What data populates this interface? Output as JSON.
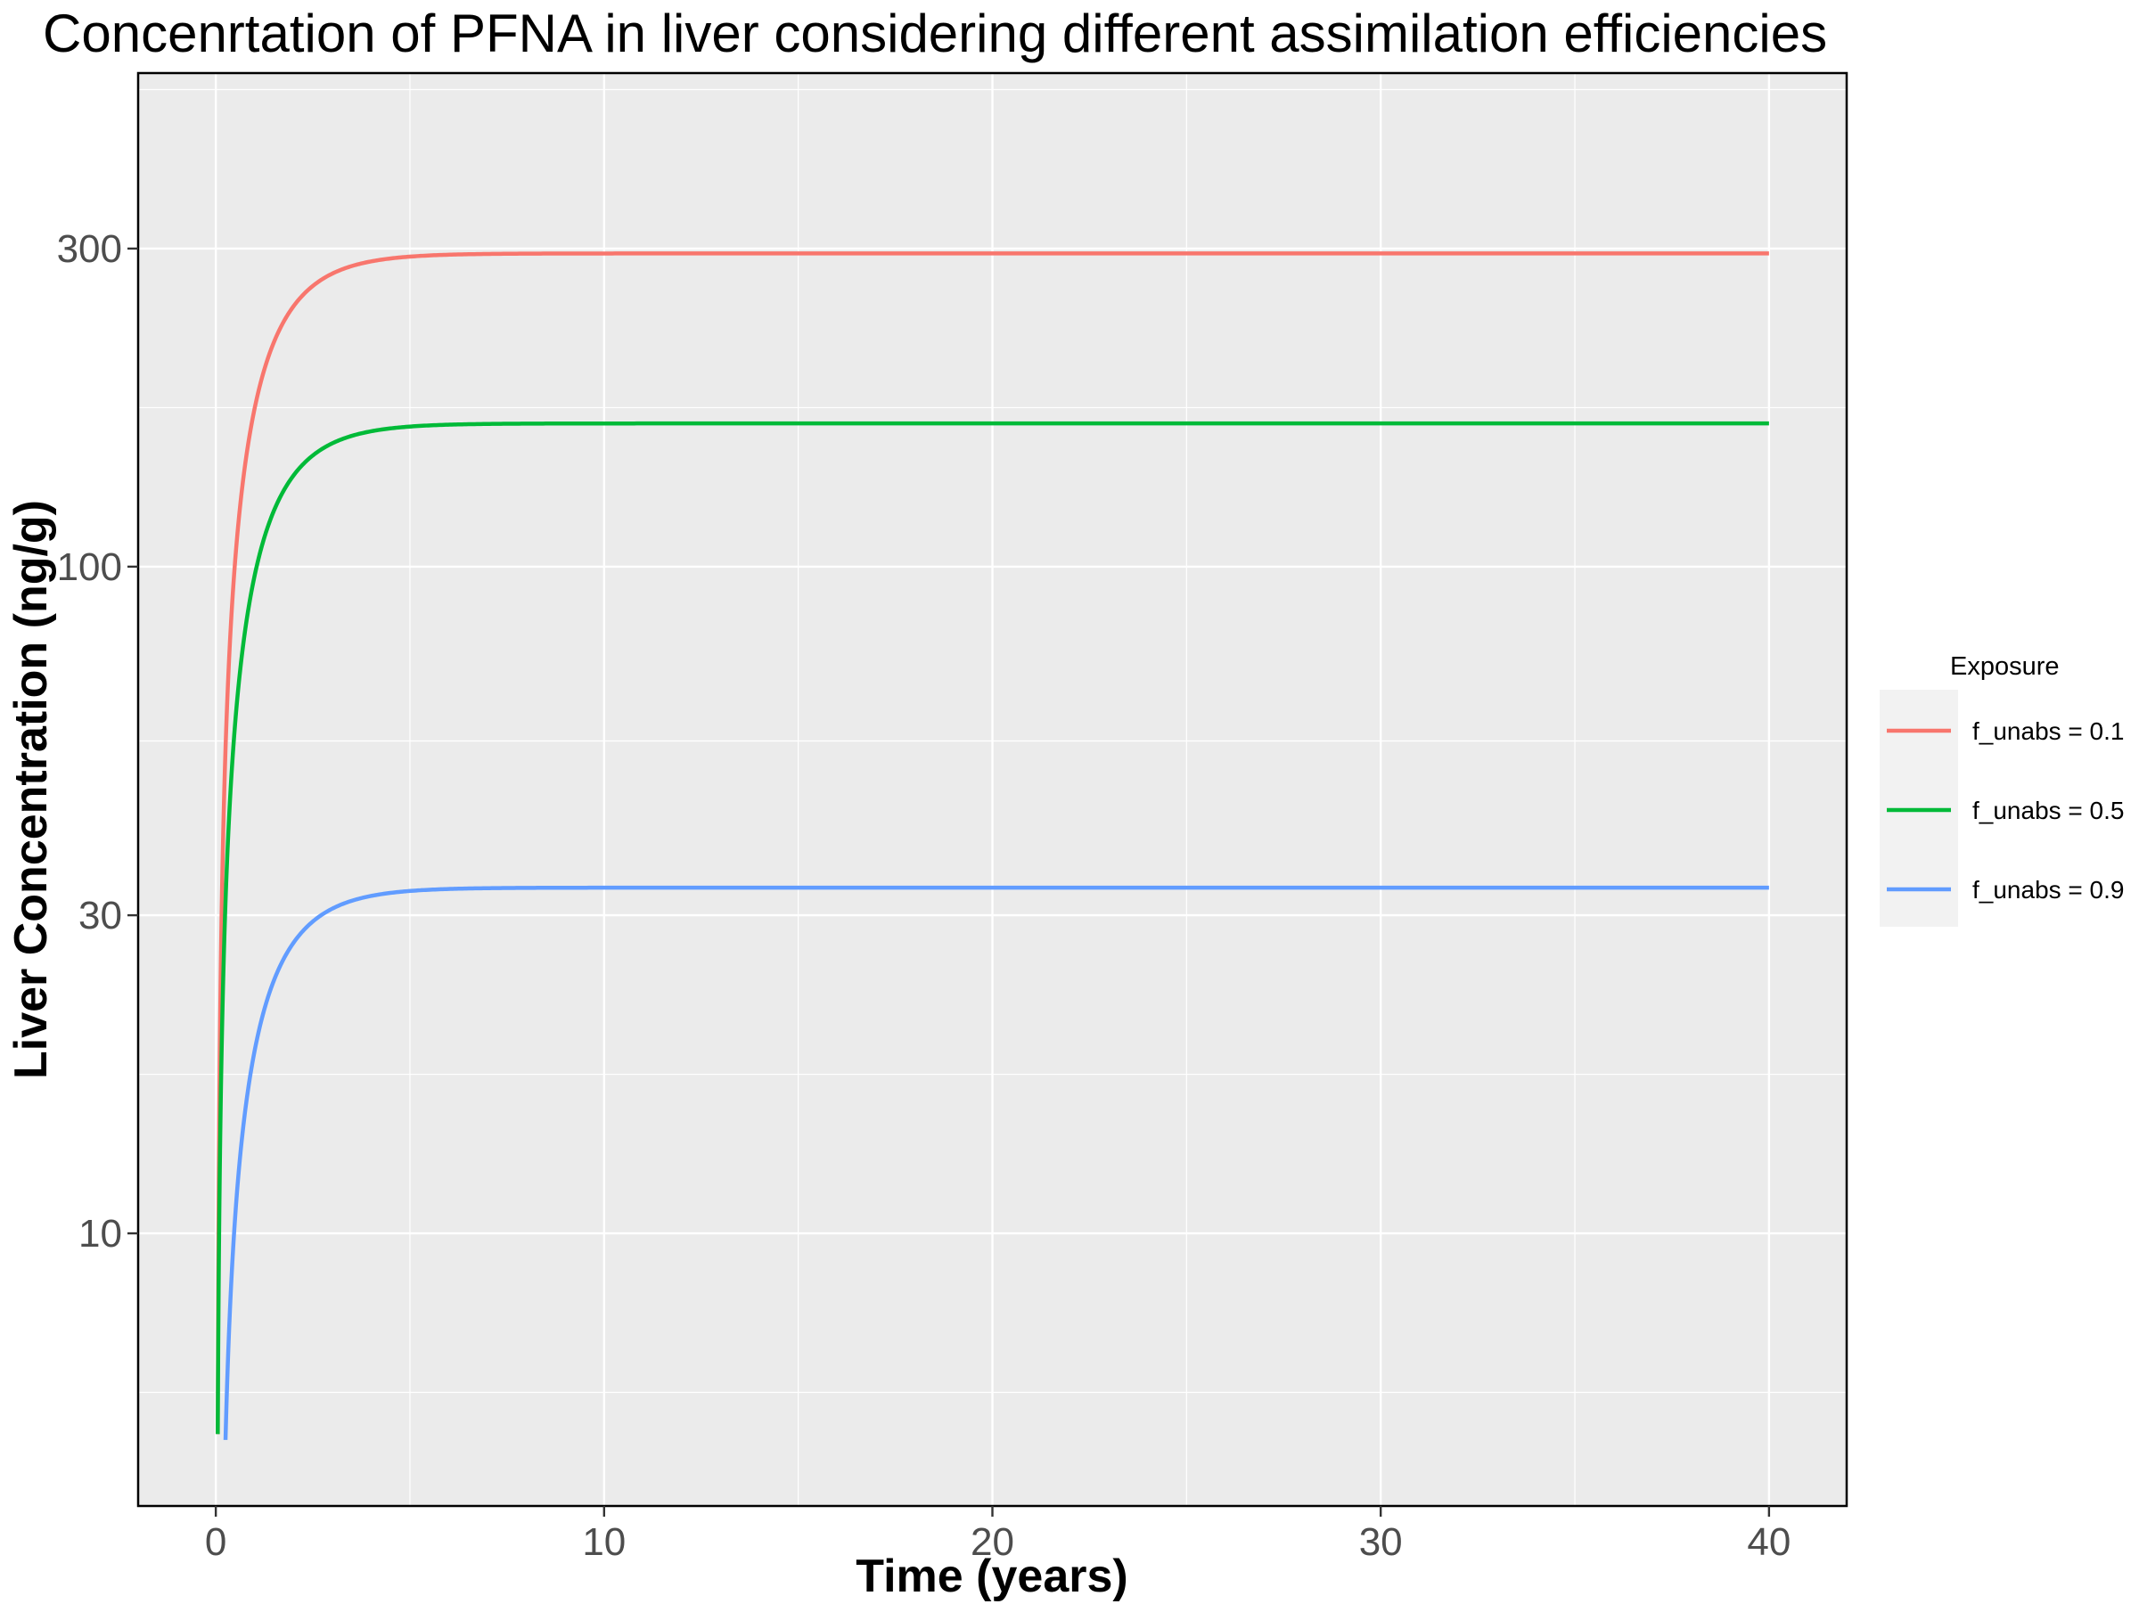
{
  "chart_data": {
    "type": "line",
    "title": "Concenrtation of PFNA in liver considering different assimilation efficiencies",
    "xlabel": "Time (years)",
    "ylabel": "Liver Concentration (ng/g)",
    "x_ticks": [
      0,
      10,
      20,
      30,
      40
    ],
    "y_ticks": [
      10,
      30,
      100,
      300
    ],
    "xlim": [
      -2,
      42
    ],
    "ylim": [
      3.9,
      550
    ],
    "y_scale": "log",
    "grid": true,
    "legend": {
      "title": "Exposure",
      "position": "right"
    },
    "series": [
      {
        "name": "f_unabs = 0.1",
        "color": "#F8766D",
        "asymptote": 295,
        "start_x": 0.05,
        "start_y": 5.0,
        "tau_years": 1.1
      },
      {
        "name": "f_unabs = 0.5",
        "color": "#00BA38",
        "asymptote": 164,
        "start_x": 0.05,
        "start_y": 5.0,
        "tau_years": 1.1
      },
      {
        "name": "f_unabs = 0.9",
        "color": "#619CFF",
        "asymptote": 33,
        "start_x": 0.25,
        "start_y": 4.9,
        "tau_years": 1.1
      }
    ]
  }
}
